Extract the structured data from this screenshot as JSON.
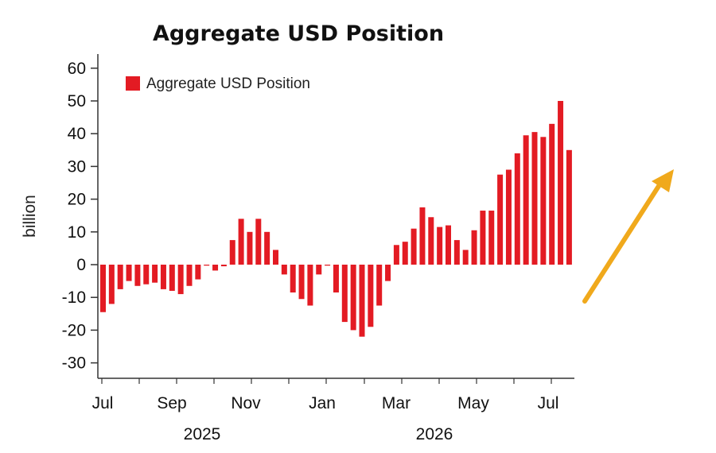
{
  "chart_data": {
    "type": "bar",
    "title": "Aggregate USD Position",
    "ylabel": "billion",
    "xlabel": "",
    "ylim": [
      -35,
      65
    ],
    "yticks": [
      60,
      50,
      40,
      30,
      20,
      10,
      0,
      -10,
      -20,
      -30
    ],
    "month_ticks": [
      "Jul",
      "Sep",
      "Nov",
      "Jan",
      "Mar",
      "May",
      "Jul"
    ],
    "year_labels": [
      "2025",
      "2026"
    ],
    "legend": {
      "placement": "top-left"
    },
    "grid": false,
    "series": [
      {
        "name": "Aggregate USD Position",
        "color": "#e31b23",
        "values": [
          -14.5,
          -12,
          -7.5,
          -5,
          -6.5,
          -6,
          -5.5,
          -7.5,
          -8,
          -9,
          -6.5,
          -4.5,
          -0.3,
          -1.8,
          -0.5,
          7.5,
          14,
          10,
          14,
          10,
          4.5,
          -3,
          -8.5,
          -10.5,
          -12.5,
          -3,
          -0.3,
          -8.5,
          -17.5,
          -20,
          -22,
          -19,
          -12.5,
          -5,
          6,
          7,
          11,
          17.5,
          14.5,
          11.5,
          12,
          7.5,
          4.5,
          10.5,
          16.5,
          16.5,
          27.5,
          29,
          34,
          39.5,
          40.5,
          39,
          43,
          50,
          35
        ]
      }
    ]
  },
  "decoration": {
    "arrow_icon_color": "#f0a91c"
  }
}
